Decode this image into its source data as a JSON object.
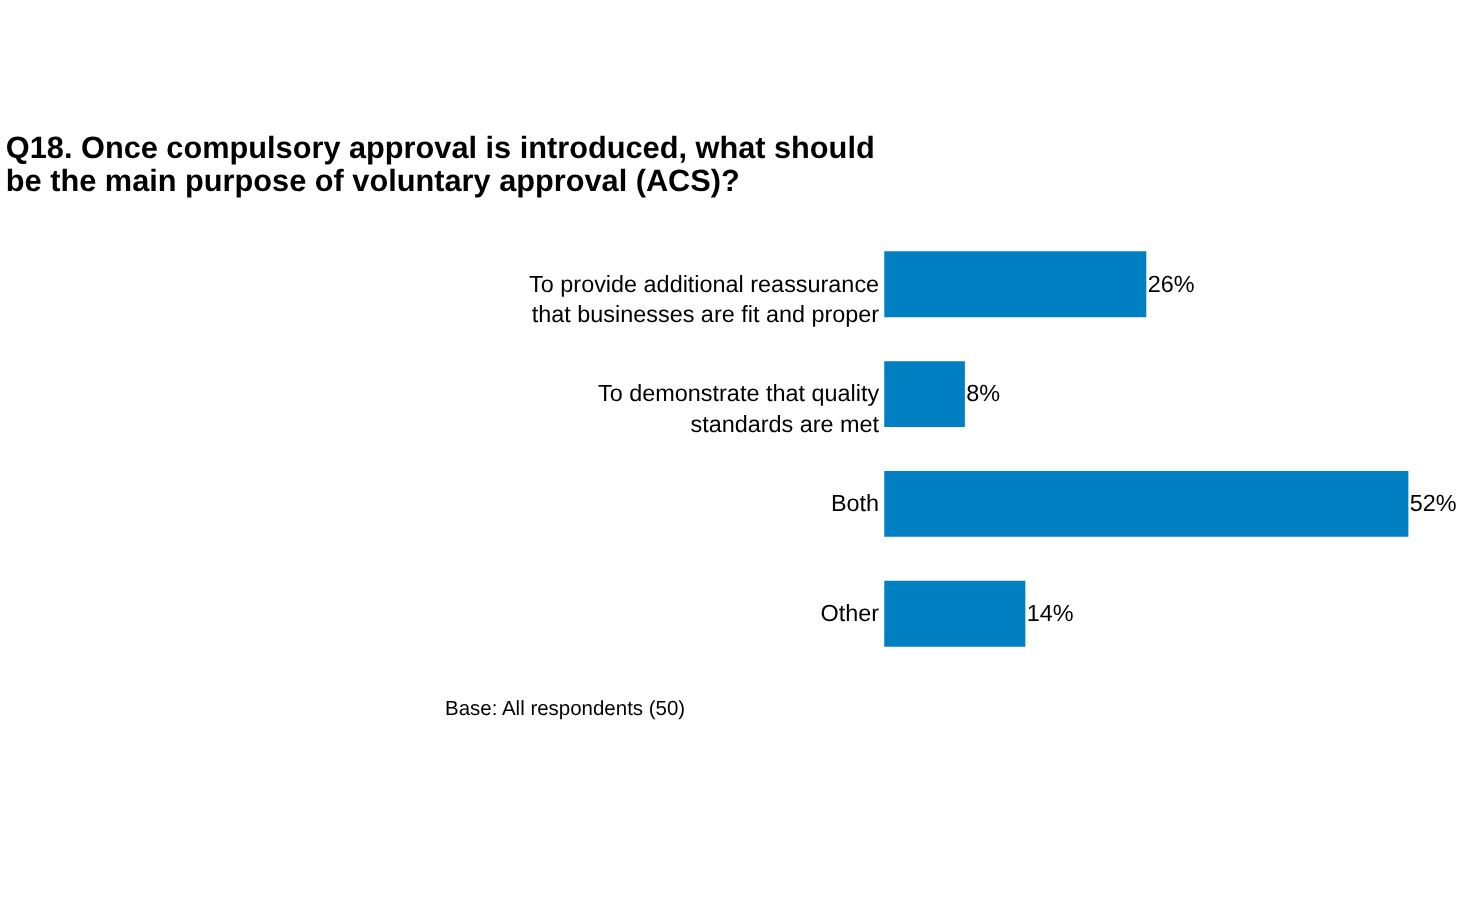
{
  "chart_data": {
    "type": "bar",
    "orientation": "horizontal",
    "title": "Q18. Once compulsory approval is introduced, what should be the main purpose of voluntary approval (ACS)?",
    "categories": [
      "To provide additional reassurance\nthat businesses are fit and proper",
      "To demonstrate that quality\nstandards are met",
      "Both",
      "Other"
    ],
    "values": [
      26,
      8,
      52,
      14
    ],
    "value_labels": [
      "26%",
      "8%",
      "52%",
      "14%"
    ],
    "color": "#0080c3",
    "annotations": [
      "Base: All respondents (50)"
    ]
  }
}
